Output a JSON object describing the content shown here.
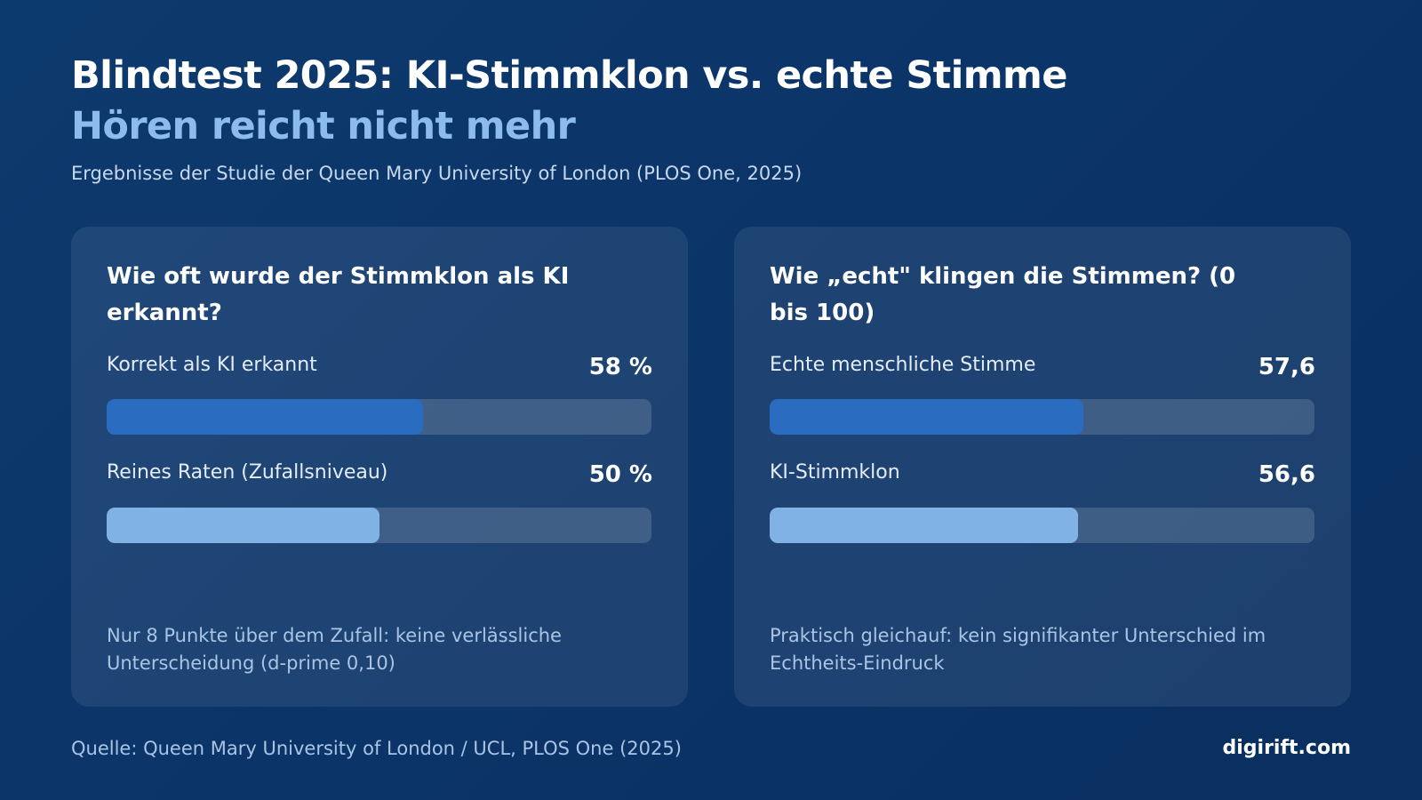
{
  "header": {
    "title": "Blindtest 2025: KI-Stimmklon vs. echte Stimme",
    "subtitle": "Hören reicht nicht mehr",
    "caption": "Ergebnisse der Studie der Queen Mary University of London (PLOS One, 2025)"
  },
  "colors": {
    "primary_bar": "#2a6cc0",
    "secondary_bar": "#80b2e6"
  },
  "chart_data": [
    {
      "type": "bar",
      "orientation": "horizontal",
      "title": "Wie oft wurde der Stimmklon als KI erkannt?",
      "xlim": [
        0,
        100
      ],
      "bars": [
        {
          "label": "Korrekt als KI erkannt",
          "value": 58,
          "value_label": "58 %"
        },
        {
          "label": "Reines Raten (Zufallsniveau)",
          "value": 50,
          "value_label": "50 %"
        }
      ],
      "note": "Nur 8 Punkte über dem Zufall: keine verlässliche Unterscheidung (d-prime 0,10)"
    },
    {
      "type": "bar",
      "orientation": "horizontal",
      "title": "Wie „echt\" klingen die Stimmen? (0 bis 100)",
      "xlim": [
        0,
        100
      ],
      "bars": [
        {
          "label": "Echte menschliche Stimme",
          "value": 57.6,
          "value_label": "57,6"
        },
        {
          "label": "KI-Stimmklon",
          "value": 56.6,
          "value_label": "56,6"
        }
      ],
      "note": "Praktisch gleichauf: kein signifikanter Unterschied im Echtheits-Eindruck"
    }
  ],
  "footer": {
    "source": "Quelle: Queen Mary University of London / UCL, PLOS One (2025)",
    "brand": "digirift.com"
  }
}
